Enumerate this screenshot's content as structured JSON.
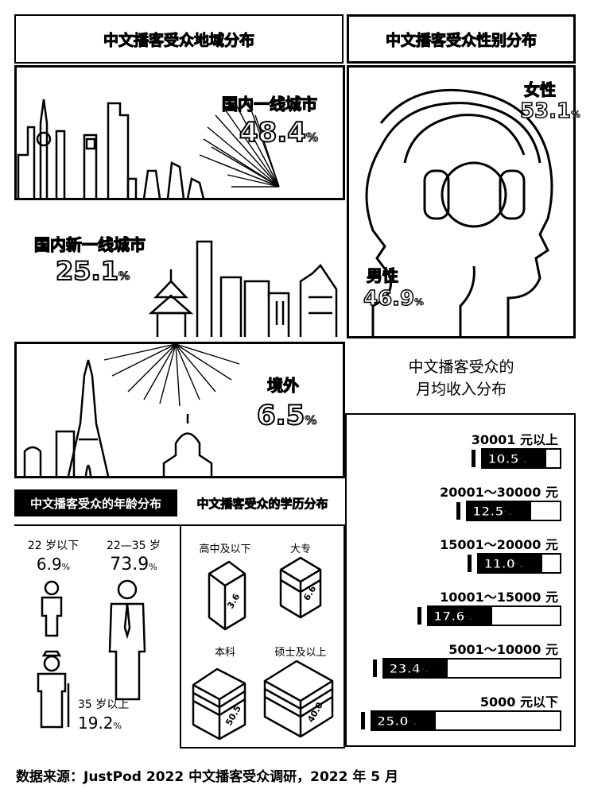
{
  "region": {
    "title": "中文播客受众地域分布",
    "tier1": {
      "label": "国内一线城市",
      "value": "48.4",
      "unit": "%"
    },
    "newtier1": {
      "label": "国内新一线城市",
      "value": "25.1",
      "unit": "%"
    },
    "overseas": {
      "label": "境外",
      "value": "6.5",
      "unit": "%"
    }
  },
  "gender": {
    "title": "中文播客受众性别分布",
    "female": {
      "label": "女性",
      "value": "53.1",
      "unit": "%"
    },
    "male": {
      "label": "男性",
      "value": "46.9",
      "unit": "%"
    }
  },
  "income": {
    "title_line1": "中文播客受众的",
    "title_line2": "月均收入分布",
    "items": [
      {
        "label": "30001 元以上",
        "value": "10.5",
        "unit": "%",
        "pct": 10.5
      },
      {
        "label": "20001～30000 元",
        "value": "12.5",
        "unit": "%",
        "pct": 12.5
      },
      {
        "label": "15001～20000 元",
        "value": "11.0",
        "unit": "%",
        "pct": 11.0
      },
      {
        "label": "10001～15000 元",
        "value": "17.6",
        "unit": "%",
        "pct": 17.6
      },
      {
        "label": "5001～10000 元",
        "value": "23.4",
        "unit": "%",
        "pct": 23.4
      },
      {
        "label": "5000 元以下",
        "value": "25.0",
        "unit": "%",
        "pct": 25.0
      }
    ]
  },
  "age": {
    "title": "中文播客受众的年龄分布",
    "under22": {
      "label": "22 岁以下",
      "value": "6.9",
      "unit": "%"
    },
    "mid": {
      "label": "22—35 岁",
      "value": "73.9",
      "unit": "%"
    },
    "over35": {
      "label": "35 岁以上",
      "value": "19.2",
      "unit": "%"
    }
  },
  "education": {
    "title": "中文播客受众的学历分布",
    "items": [
      {
        "label": "高中及以下",
        "value": "3.6"
      },
      {
        "label": "大专",
        "value": "6.6"
      },
      {
        "label": "本科",
        "value": "50.5"
      },
      {
        "label": "硕士及以上",
        "value": "40.0"
      }
    ]
  },
  "footer": {
    "source": "数据来源：JustPod 2022 中文播客受众调研，2022 年 5 月"
  }
}
